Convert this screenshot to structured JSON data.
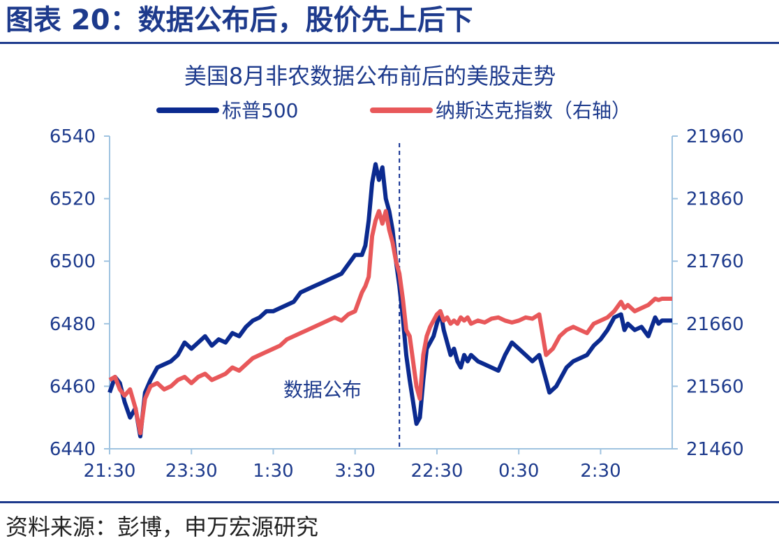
{
  "figure": {
    "title": "图表 20：数据公布后，股价先上后下",
    "source": "资料来源：彭博，申万宏源研究"
  },
  "colors": {
    "sp500": "#0b2a8f",
    "nasdaq": "#e8585a",
    "axis": "#9fc3e0",
    "text": "#1d3a8c"
  },
  "chart_data": {
    "type": "line",
    "title": "美国8月非农数据公布前后的美股走势",
    "x_ticks": [
      "21:30",
      "23:30",
      "1:30",
      "3:30",
      "22:30",
      "0:30",
      "2:30"
    ],
    "x_tick_positions": [
      0,
      120,
      240,
      360,
      480,
      600,
      720
    ],
    "x_range": [
      0,
      825
    ],
    "annotation": {
      "label": "数据公布",
      "x": 425
    },
    "y_left": {
      "min": 6440,
      "max": 6540,
      "ticks": [
        6540,
        6520,
        6500,
        6480,
        6460,
        6440
      ]
    },
    "y_right": {
      "min": 21460,
      "max": 21960,
      "ticks": [
        21960,
        21860,
        21760,
        21660,
        21560,
        21460
      ]
    },
    "series": [
      {
        "name": "标普500",
        "axis": "left",
        "x": [
          0,
          8,
          15,
          22,
          30,
          38,
          45,
          52,
          60,
          70,
          80,
          90,
          100,
          110,
          120,
          130,
          140,
          150,
          160,
          170,
          180,
          190,
          200,
          210,
          220,
          230,
          240,
          250,
          260,
          270,
          280,
          290,
          300,
          310,
          320,
          330,
          340,
          350,
          360,
          370,
          375,
          380,
          385,
          390,
          395,
          400,
          405,
          410,
          415,
          420,
          425,
          430,
          435,
          440,
          445,
          450,
          455,
          460,
          465,
          470,
          475,
          480,
          485,
          490,
          495,
          500,
          505,
          510,
          515,
          520,
          525,
          530,
          540,
          550,
          560,
          570,
          580,
          590,
          600,
          610,
          620,
          630,
          640,
          645,
          650,
          655,
          660,
          670,
          680,
          690,
          700,
          710,
          720,
          730,
          740,
          750,
          755,
          760,
          770,
          780,
          790,
          800,
          805,
          810,
          825
        ],
        "values": [
          6458,
          6463,
          6461,
          6455,
          6450,
          6453,
          6444,
          6458,
          6462,
          6466,
          6467,
          6468,
          6470,
          6474,
          6472,
          6474,
          6476,
          6473,
          6475,
          6474,
          6477,
          6476,
          6479,
          6481,
          6482,
          6484,
          6484,
          6485,
          6486,
          6487,
          6490,
          6491,
          6492,
          6493,
          6494,
          6495,
          6496,
          6499,
          6502,
          6502,
          6505,
          6513,
          6525,
          6531,
          6526,
          6530,
          6520,
          6516,
          6510,
          6500,
          6492,
          6482,
          6470,
          6462,
          6455,
          6448,
          6450,
          6462,
          6472,
          6474,
          6476,
          6480,
          6484,
          6478,
          6474,
          6470,
          6472,
          6468,
          6466,
          6470,
          6468,
          6470,
          6468,
          6467,
          6466,
          6465,
          6470,
          6474,
          6472,
          6470,
          6468,
          6470,
          6462,
          6458,
          6459,
          6460,
          6462,
          6466,
          6468,
          6469,
          6470,
          6473,
          6475,
          6478,
          6482,
          6483,
          6478,
          6480,
          6478,
          6479,
          6476,
          6482,
          6480,
          6481,
          6481
        ]
      },
      {
        "name": "纳斯达克指数（右轴）",
        "axis": "right",
        "x": [
          0,
          8,
          15,
          22,
          30,
          38,
          45,
          52,
          60,
          70,
          80,
          90,
          100,
          110,
          120,
          130,
          140,
          150,
          160,
          170,
          180,
          190,
          200,
          210,
          220,
          230,
          240,
          250,
          260,
          270,
          280,
          290,
          300,
          310,
          320,
          330,
          340,
          350,
          360,
          370,
          375,
          380,
          385,
          390,
          395,
          400,
          405,
          410,
          415,
          420,
          425,
          430,
          435,
          440,
          445,
          450,
          455,
          460,
          465,
          470,
          475,
          480,
          485,
          490,
          495,
          500,
          505,
          510,
          515,
          520,
          525,
          530,
          540,
          550,
          560,
          570,
          580,
          590,
          600,
          610,
          620,
          630,
          640,
          645,
          650,
          655,
          660,
          670,
          680,
          690,
          700,
          710,
          720,
          730,
          740,
          750,
          755,
          760,
          770,
          780,
          790,
          800,
          805,
          810,
          825
        ],
        "values": [
          21570,
          21575,
          21555,
          21545,
          21555,
          21525,
          21485,
          21540,
          21560,
          21565,
          21555,
          21560,
          21570,
          21575,
          21565,
          21575,
          21580,
          21570,
          21575,
          21580,
          21590,
          21585,
          21595,
          21605,
          21610,
          21615,
          21620,
          21625,
          21635,
          21640,
          21645,
          21650,
          21655,
          21660,
          21665,
          21670,
          21665,
          21675,
          21680,
          21710,
          21720,
          21735,
          21800,
          21825,
          21840,
          21820,
          21840,
          21810,
          21790,
          21760,
          21740,
          21700,
          21650,
          21640,
          21600,
          21560,
          21540,
          21610,
          21640,
          21655,
          21665,
          21675,
          21680,
          21665,
          21670,
          21660,
          21665,
          21660,
          21670,
          21665,
          21670,
          21660,
          21665,
          21662,
          21668,
          21670,
          21665,
          21662,
          21665,
          21670,
          21668,
          21675,
          21610,
          21615,
          21620,
          21630,
          21640,
          21650,
          21655,
          21650,
          21645,
          21660,
          21665,
          21670,
          21680,
          21695,
          21685,
          21690,
          21680,
          21685,
          21690,
          21700,
          21698,
          21700,
          21700
        ]
      }
    ]
  }
}
